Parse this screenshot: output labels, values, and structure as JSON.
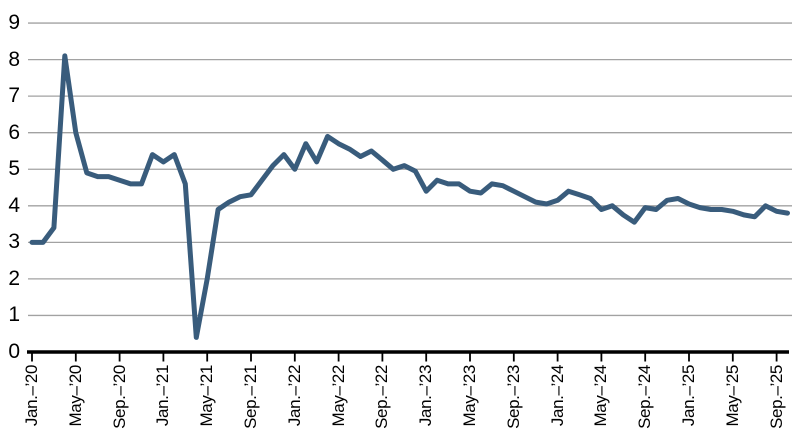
{
  "colors": {
    "series_line": "#395c7c",
    "gridline": "#a2a2a2",
    "axis": "#000000",
    "tick": "#000000",
    "text": "#000000",
    "background": "#ffffff"
  },
  "chart_data": {
    "type": "line",
    "title": "",
    "xlabel": "",
    "ylabel": "",
    "legend": "none",
    "grid": "horizontal",
    "ylim": [
      0,
      9
    ],
    "y_ticks": [
      0,
      1,
      2,
      3,
      4,
      5,
      6,
      7,
      8,
      9
    ],
    "x_tick_every_n_months": 4,
    "x_tick_labels": [
      "Jan.–’20",
      "May–’20",
      "Sep.–’20",
      "Jan.–’21",
      "May–’21",
      "Sep.–’21",
      "Jan.–’22",
      "May–’22",
      "Sep.–’22",
      "Jan.–’23",
      "May–’23",
      "Sep.–’23",
      "Jan.–’24",
      "May–’24",
      "Sep.–’24",
      "Jan.–’25",
      "May–’25",
      "Sep.–’25"
    ],
    "x_monthly": [
      "2020-01",
      "2020-02",
      "2020-03",
      "2020-04",
      "2020-05",
      "2020-06",
      "2020-07",
      "2020-08",
      "2020-09",
      "2020-10",
      "2020-11",
      "2020-12",
      "2021-01",
      "2021-02",
      "2021-03",
      "2021-04",
      "2021-05",
      "2021-06",
      "2021-07",
      "2021-08",
      "2021-09",
      "2021-10",
      "2021-11",
      "2021-12",
      "2022-01",
      "2022-02",
      "2022-03",
      "2022-04",
      "2022-05",
      "2022-06",
      "2022-07",
      "2022-08",
      "2022-09",
      "2022-10",
      "2022-11",
      "2022-12",
      "2023-01",
      "2023-02",
      "2023-03",
      "2023-04",
      "2023-05",
      "2023-06",
      "2023-07",
      "2023-08",
      "2023-09",
      "2023-10",
      "2023-11",
      "2023-12",
      "2024-01",
      "2024-02",
      "2024-03",
      "2024-04",
      "2024-05",
      "2024-06",
      "2024-07",
      "2024-08",
      "2024-09",
      "2024-10",
      "2024-11",
      "2024-12",
      "2025-01",
      "2025-02",
      "2025-03",
      "2025-04",
      "2025-05",
      "2025-06",
      "2025-07",
      "2025-08",
      "2025-09",
      "2025-10"
    ],
    "series": [
      {
        "name": "value",
        "values": [
          3.0,
          3.0,
          3.4,
          8.1,
          6.0,
          4.9,
          4.8,
          4.8,
          4.7,
          4.6,
          4.6,
          5.4,
          5.2,
          5.4,
          4.6,
          0.4,
          2.0,
          3.9,
          4.1,
          4.25,
          4.3,
          4.7,
          5.1,
          5.4,
          5.0,
          5.7,
          5.2,
          5.9,
          5.7,
          5.55,
          5.35,
          5.5,
          5.25,
          5.0,
          5.1,
          4.95,
          4.4,
          4.7,
          4.6,
          4.6,
          4.4,
          4.35,
          4.6,
          4.55,
          4.4,
          4.25,
          4.1,
          4.05,
          4.15,
          4.4,
          4.3,
          4.2,
          3.9,
          4.0,
          3.75,
          3.55,
          3.95,
          3.9,
          4.15,
          4.2,
          4.05,
          3.95,
          3.9,
          3.9,
          3.85,
          3.75,
          3.7,
          4.0,
          3.85,
          3.8
        ]
      }
    ]
  }
}
